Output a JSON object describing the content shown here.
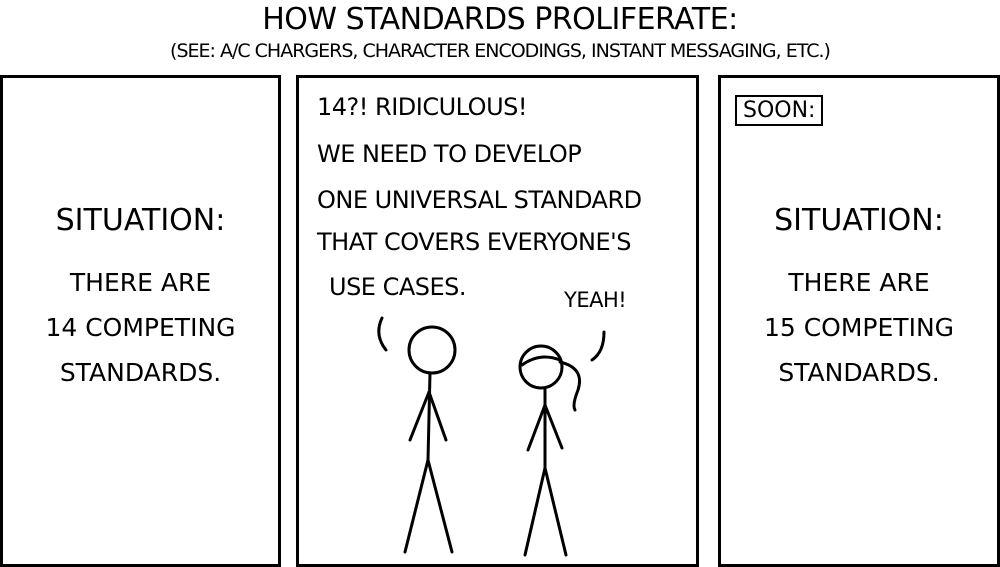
{
  "header": {
    "title": "HOW STANDARDS PROLIFERATE:",
    "subtitle": "(SEE: A/C CHARGERS, CHARACTER ENCODINGS, INSTANT MESSAGING, ETC.)"
  },
  "panels": [
    {
      "heading": "SITUATION:",
      "lines": [
        "THERE ARE",
        "14 COMPETING",
        "STANDARDS."
      ]
    },
    {
      "speech_man": [
        "14?! RIDICULOUS!",
        "WE NEED TO DEVELOP",
        "ONE UNIVERSAL STANDARD",
        "THAT COVERS EVERYONE'S",
        "USE CASES."
      ],
      "speech_woman": "YEAH!"
    },
    {
      "caption": "SOON:",
      "heading": "SITUATION:",
      "lines": [
        "THERE ARE",
        "15 COMPETING",
        "STANDARDS."
      ]
    }
  ]
}
